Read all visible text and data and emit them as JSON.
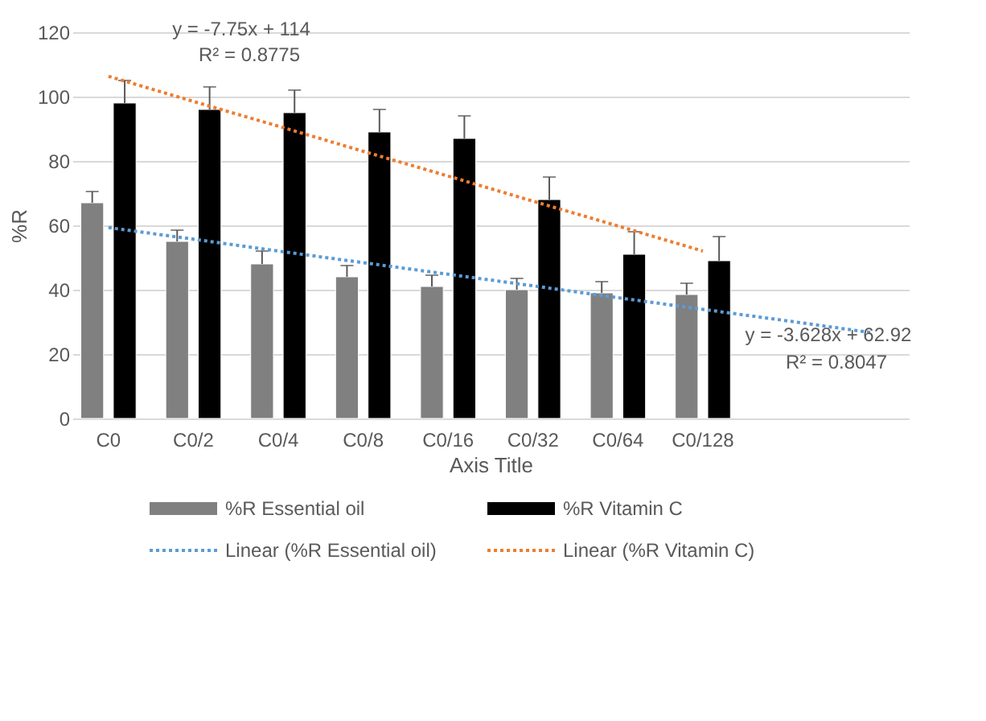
{
  "chart_data": {
    "type": "bar",
    "xlabel": "Axis Title",
    "ylabel": "%R",
    "categories": [
      "C0",
      "C0/2",
      "C0/4",
      "C0/8",
      "C0/16",
      "C0/32",
      "C0/64",
      "C0/128",
      null,
      null
    ],
    "series": [
      {
        "name": "%R Essential oil",
        "color": "#808080",
        "values": [
          67,
          55,
          48,
          44,
          41,
          40,
          39,
          38.5,
          null,
          null
        ],
        "errors": [
          [
            67,
            70.5
          ],
          [
            55,
            58.5
          ],
          [
            48,
            52
          ],
          [
            44,
            47.5
          ],
          [
            41,
            44.5
          ],
          [
            40,
            43.5
          ],
          [
            39,
            42.5
          ],
          [
            38.5,
            42
          ],
          null,
          null
        ]
      },
      {
        "name": "%R Vitamin C",
        "color": "#000000",
        "values": [
          98,
          96,
          95,
          89,
          87,
          68,
          51,
          49,
          null,
          null
        ],
        "errors": [
          [
            98,
            105
          ],
          [
            96,
            103
          ],
          [
            95,
            102
          ],
          [
            89,
            96
          ],
          [
            87,
            94
          ],
          [
            68,
            75
          ],
          [
            51,
            58
          ],
          [
            49,
            56.5
          ],
          null,
          null
        ]
      },
      {
        "name": "Linear (%R Essential oil)",
        "type": "line",
        "color": "#5b9bd5",
        "line_style": "dotted",
        "values": [
          59.3,
          55.7,
          52.0,
          48.4,
          44.8,
          41.2,
          37.5,
          33.9,
          30.3,
          26.6
        ]
      },
      {
        "name": "Linear (%R Vitamin C)",
        "type": "line",
        "color": "#ed7d31",
        "line_style": "dotted",
        "values": [
          106.3,
          98.5,
          90.8,
          83,
          75.3,
          67.5,
          59.8,
          52,
          null,
          null
        ]
      }
    ],
    "annotations": [
      "y = -7.75x + 114",
      "R² = 0.8775",
      "y = -3.628x + 62.92",
      "R² = 0.8047"
    ],
    "ylim": [
      0,
      120
    ],
    "yticks": [
      0,
      20,
      40,
      60,
      80,
      100,
      120
    ],
    "grid": "y",
    "legend": "bottom"
  }
}
